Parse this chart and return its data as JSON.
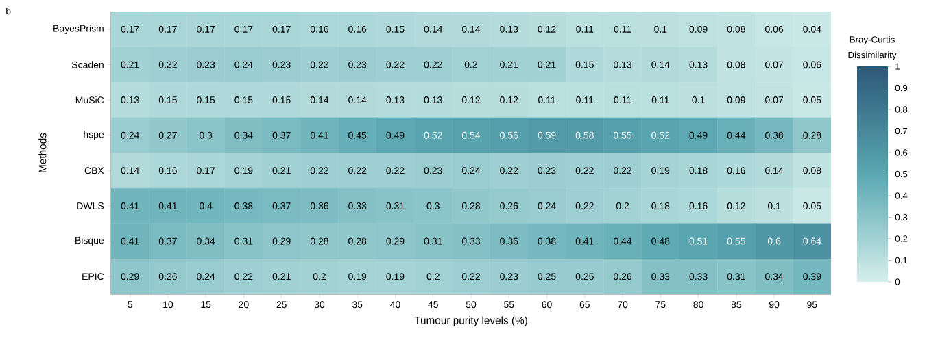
{
  "chart_data": {
    "type": "heatmap",
    "xlabel": "Tumour purity levels (%)",
    "ylabel": "Methods",
    "clabel": "Bray-Curtis Dissimilarity",
    "annotations": [
      "b"
    ],
    "categories": [
      "5",
      "10",
      "15",
      "20",
      "25",
      "30",
      "35",
      "40",
      "45",
      "50",
      "55",
      "60",
      "65",
      "70",
      "75",
      "80",
      "85",
      "90",
      "95"
    ],
    "y_categories": [
      "BayesPrism",
      "Scaden",
      "MuSiC",
      "hspe",
      "CBX",
      "DWLS",
      "Bisque",
      "EPIC"
    ],
    "cells": [
      [
        0.17,
        0.17,
        0.17,
        0.17,
        0.17,
        0.16,
        0.16,
        0.15,
        0.14,
        0.14,
        0.13,
        0.12,
        0.11,
        0.11,
        0.1,
        0.09,
        0.08,
        0.06,
        0.04
      ],
      [
        0.21,
        0.22,
        0.23,
        0.24,
        0.23,
        0.22,
        0.23,
        0.22,
        0.22,
        0.2,
        0.21,
        0.21,
        0.15,
        0.13,
        0.14,
        0.13,
        0.08,
        0.07,
        0.06
      ],
      [
        0.13,
        0.15,
        0.15,
        0.15,
        0.15,
        0.14,
        0.14,
        0.13,
        0.13,
        0.12,
        0.12,
        0.11,
        0.11,
        0.11,
        0.11,
        0.1,
        0.09,
        0.07,
        0.05
      ],
      [
        0.24,
        0.27,
        0.3,
        0.34,
        0.37,
        0.41,
        0.45,
        0.49,
        0.52,
        0.54,
        0.56,
        0.59,
        0.58,
        0.55,
        0.52,
        0.49,
        0.44,
        0.38,
        0.28
      ],
      [
        0.14,
        0.16,
        0.17,
        0.19,
        0.21,
        0.22,
        0.22,
        0.22,
        0.23,
        0.24,
        0.22,
        0.23,
        0.22,
        0.22,
        0.19,
        0.18,
        0.16,
        0.14,
        0.08
      ],
      [
        0.41,
        0.41,
        0.4,
        0.38,
        0.37,
        0.36,
        0.33,
        0.31,
        0.3,
        0.28,
        0.26,
        0.24,
        0.22,
        0.2,
        0.18,
        0.16,
        0.12,
        0.1,
        0.05
      ],
      [
        0.41,
        0.37,
        0.34,
        0.31,
        0.29,
        0.28,
        0.28,
        0.29,
        0.31,
        0.33,
        0.36,
        0.38,
        0.41,
        0.44,
        0.48,
        0.51,
        0.55,
        0.6,
        0.64
      ],
      [
        0.29,
        0.26,
        0.24,
        0.22,
        0.21,
        0.2,
        0.19,
        0.19,
        0.2,
        0.22,
        0.23,
        0.25,
        0.25,
        0.26,
        0.33,
        0.33,
        0.31,
        0.34,
        0.39
      ]
    ],
    "data_labels": true,
    "clim": [
      0,
      1
    ],
    "cticks": [
      0,
      0.1,
      0.2,
      0.3,
      0.4,
      0.5,
      0.6,
      0.7,
      0.8,
      0.9,
      1
    ]
  }
}
